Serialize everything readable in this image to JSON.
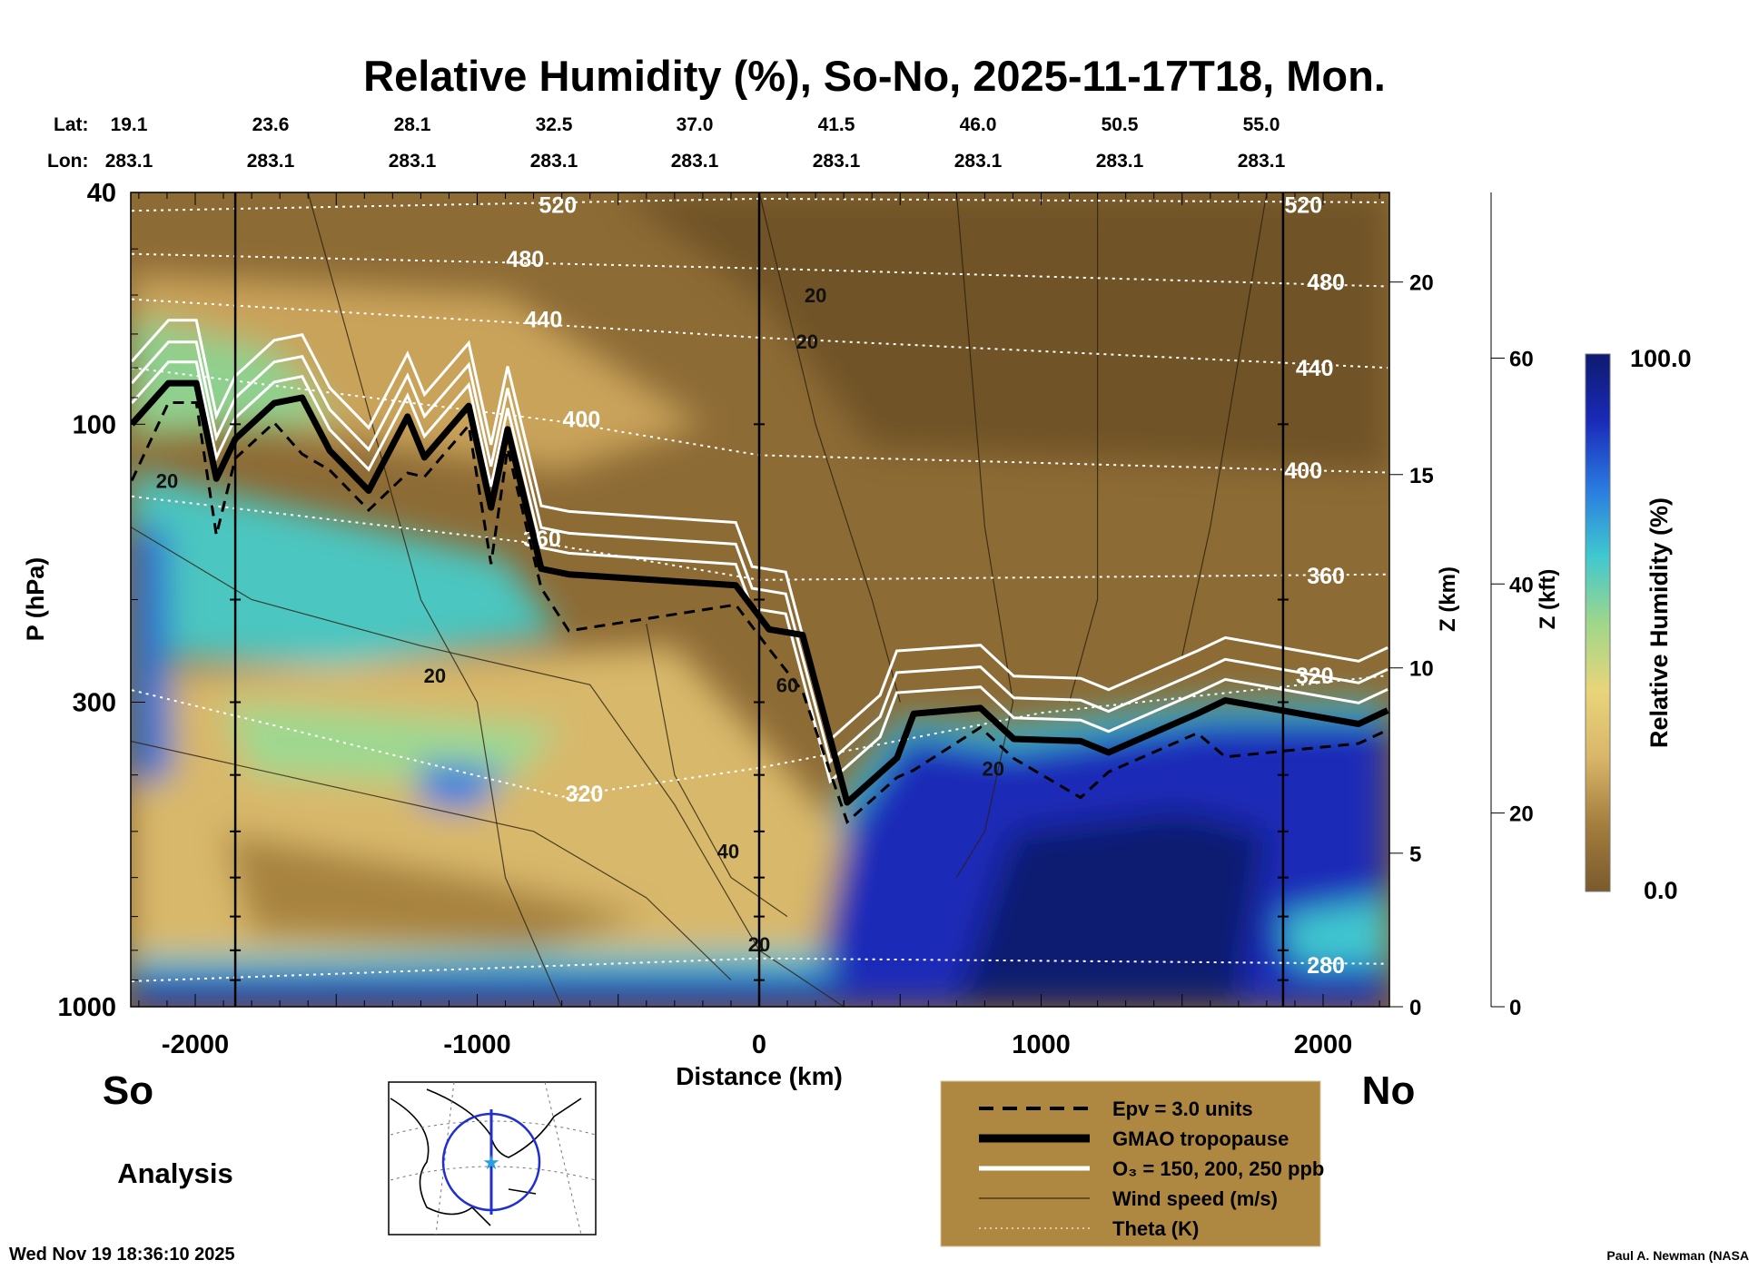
{
  "chart_data": {
    "type": "heatmap",
    "title": "Relative Humidity (%), So-No, 2025-11-17T18, Mon.",
    "xlabel": "Distance (km)",
    "ylabel": "P (hPa)",
    "y2label": "Z (km)",
    "y3label": "Z (kft)",
    "xlim": [
      -2230,
      2230
    ],
    "ylim": [
      1000,
      40
    ],
    "x_ticks": [
      -2000,
      -1000,
      0,
      1000,
      2000
    ],
    "x_tick_labels": [
      "-2000",
      "-1000",
      "0",
      "1000",
      "2000"
    ],
    "y_ticks": [
      40,
      100,
      300,
      1000
    ],
    "y_tick_labels": [
      "40",
      "100",
      "300",
      "1000"
    ],
    "z_km_ticks": [
      {
        "v": 0,
        "p": 1000
      },
      {
        "v": 5,
        "p": 545
      },
      {
        "v": 10,
        "p": 262
      },
      {
        "v": 15,
        "p": 122
      },
      {
        "v": 20,
        "p": 57
      }
    ],
    "z_kft_ticks": [
      {
        "v": 0,
        "p": 1000
      },
      {
        "v": 20,
        "p": 465
      },
      {
        "v": 40,
        "p": 188
      },
      {
        "v": 60,
        "p": 77
      }
    ],
    "lat_label": "Lat:",
    "lon_label": "Lon:",
    "lat_values": [
      "19.1",
      "23.6",
      "28.1",
      "32.5",
      "37.0",
      "41.5",
      "46.0",
      "50.5",
      "55.0"
    ],
    "lon_values": [
      "283.1",
      "283.1",
      "283.1",
      "283.1",
      "283.1",
      "283.1",
      "283.1",
      "283.1",
      "283.1"
    ],
    "section_markers_km": [
      -1858,
      0,
      1858
    ],
    "end_labels": {
      "left": "So",
      "right": "No"
    },
    "colorbar": {
      "label": "Relative Humidity (%)",
      "min": 0.0,
      "max": 100.0,
      "min_label": "0.0",
      "max_label": "100.0",
      "colors": [
        "#7a5a2c",
        "#a47e3e",
        "#d9b66a",
        "#e8d57a",
        "#9fd68a",
        "#3fc8d0",
        "#2a7ae0",
        "#1a2ab8",
        "#0e1a70"
      ]
    },
    "tropopause": [
      [
        -2225,
        100
      ],
      [
        -2095,
        85
      ],
      [
        -1996,
        85
      ],
      [
        -1925,
        124
      ],
      [
        -1858,
        106
      ],
      [
        -1720,
        92
      ],
      [
        -1621,
        90
      ],
      [
        -1523,
        111
      ],
      [
        -1385,
        130
      ],
      [
        -1247,
        97
      ],
      [
        -1187,
        114
      ],
      [
        -1030,
        93
      ],
      [
        -951,
        139
      ],
      [
        -892,
        102
      ],
      [
        -773,
        177
      ],
      [
        -675,
        181
      ],
      [
        -83,
        189
      ],
      [
        35,
        225
      ],
      [
        154,
        230
      ],
      [
        312,
        446
      ],
      [
        489,
        374
      ],
      [
        548,
        314
      ],
      [
        785,
        307
      ],
      [
        903,
        347
      ],
      [
        1140,
        350
      ],
      [
        1239,
        366
      ],
      [
        1554,
        314
      ],
      [
        1653,
        298
      ],
      [
        2126,
        327
      ],
      [
        2229,
        310
      ]
    ],
    "theta_contours": [
      {
        "level": "520",
        "points": [
          [
            -2225,
            43
          ],
          [
            0,
            41
          ],
          [
            2229,
            41.6
          ]
        ],
        "labels": [
          [
            -714,
            42
          ],
          [
            1930,
            42
          ]
        ]
      },
      {
        "level": "480",
        "points": [
          [
            -2225,
            51
          ],
          [
            0,
            54
          ],
          [
            2229,
            58
          ]
        ],
        "labels": [
          [
            -830,
            52
          ],
          [
            2010,
            57
          ]
        ]
      },
      {
        "level": "440",
        "points": [
          [
            -2225,
            61
          ],
          [
            0,
            71
          ],
          [
            2229,
            80
          ]
        ],
        "labels": [
          [
            -765,
            66
          ],
          [
            1970,
            80
          ]
        ]
      },
      {
        "level": "400",
        "points": [
          [
            -2225,
            80
          ],
          [
            -700,
            99
          ],
          [
            0,
            113
          ],
          [
            2229,
            121
          ]
        ],
        "labels": [
          [
            -630,
            98
          ],
          [
            1930,
            120
          ]
        ]
      },
      {
        "level": "360",
        "points": [
          [
            -2225,
            133
          ],
          [
            -700,
            162
          ],
          [
            0,
            185
          ],
          [
            2229,
            181
          ]
        ],
        "labels": [
          [
            -770,
            157
          ],
          [
            2010,
            182
          ]
        ]
      },
      {
        "level": "320",
        "points": [
          [
            -2225,
            286
          ],
          [
            -700,
            436
          ],
          [
            0,
            389
          ],
          [
            1000,
            313
          ],
          [
            2229,
            270
          ]
        ],
        "labels": [
          [
            -620,
            430
          ],
          [
            1970,
            270
          ]
        ]
      },
      {
        "level": "280",
        "points": [
          [
            -2225,
            904
          ],
          [
            0,
            826
          ],
          [
            2229,
            844
          ]
        ],
        "labels": [
          [
            2010,
            848
          ]
        ]
      }
    ],
    "wind_labels": [
      {
        "text": "20",
        "km": -2100,
        "p": 125
      },
      {
        "text": "20",
        "km": -1150,
        "p": 270
      },
      {
        "text": "40",
        "km": -110,
        "p": 540
      },
      {
        "text": "60",
        "km": 100,
        "p": 280
      },
      {
        "text": "20",
        "km": 0,
        "p": 780
      },
      {
        "text": "20",
        "km": 200,
        "p": 60
      },
      {
        "text": "20",
        "km": 170,
        "p": 72
      },
      {
        "text": "20",
        "km": 830,
        "p": 390
      }
    ],
    "legend": [
      {
        "style": "dashed",
        "label": "Epv = 3.0 units"
      },
      {
        "style": "thick",
        "label": "GMAO tropopause"
      },
      {
        "style": "white",
        "label": "O₃ = 150, 200, 250 ppb"
      },
      {
        "style": "thin",
        "label": "Wind speed (m/s)"
      },
      {
        "style": "dotted",
        "label": "Theta (K)"
      }
    ]
  },
  "analysis_label": "Analysis",
  "timestamp": "Wed Nov 19 18:36:10 2025",
  "credit": "Paul A. Newman (NASA"
}
